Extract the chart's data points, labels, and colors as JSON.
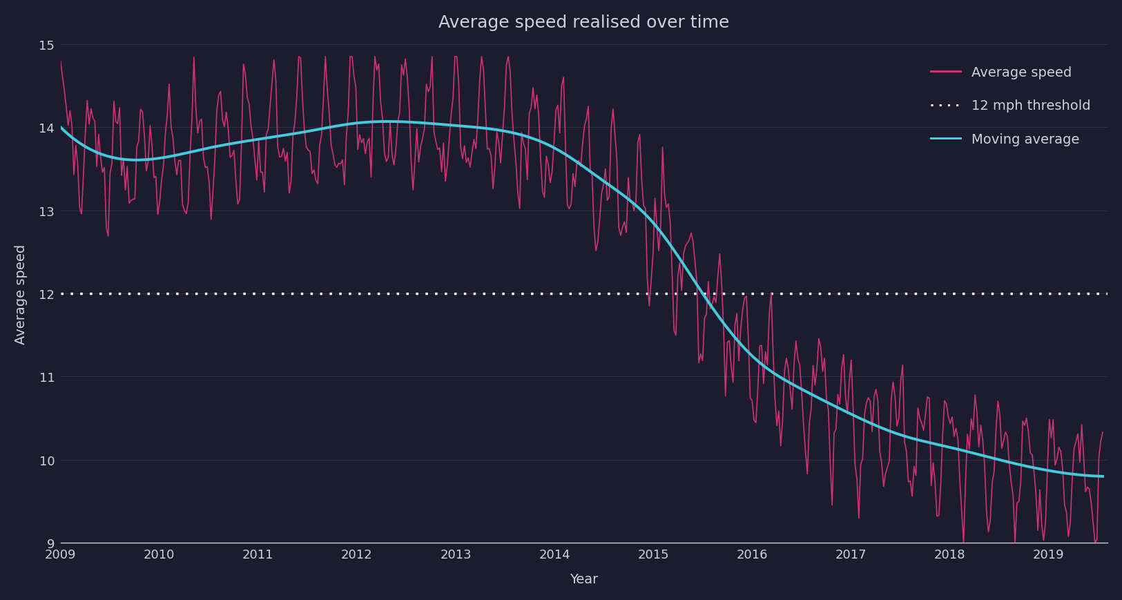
{
  "title": "Average speed realised over time",
  "xlabel": "Year",
  "ylabel": "Average speed",
  "ylim": [
    9,
    15
  ],
  "xlim": [
    2009,
    2019.6
  ],
  "threshold": 12,
  "threshold_label": "12 mph threshold",
  "avg_speed_label": "Average speed",
  "moving_avg_label": "Moving average",
  "background_color": "#1c1c2e",
  "text_color": "#d0d0e0",
  "grid_color": "#333348",
  "avg_speed_color": "#cc3377",
  "moving_avg_color": "#44ccdd",
  "threshold_color": "#ffffff",
  "yticks": [
    9,
    10,
    11,
    12,
    13,
    14,
    15
  ],
  "xticks": [
    2009,
    2010,
    2011,
    2012,
    2013,
    2014,
    2015,
    2016,
    2017,
    2018,
    2019
  ]
}
